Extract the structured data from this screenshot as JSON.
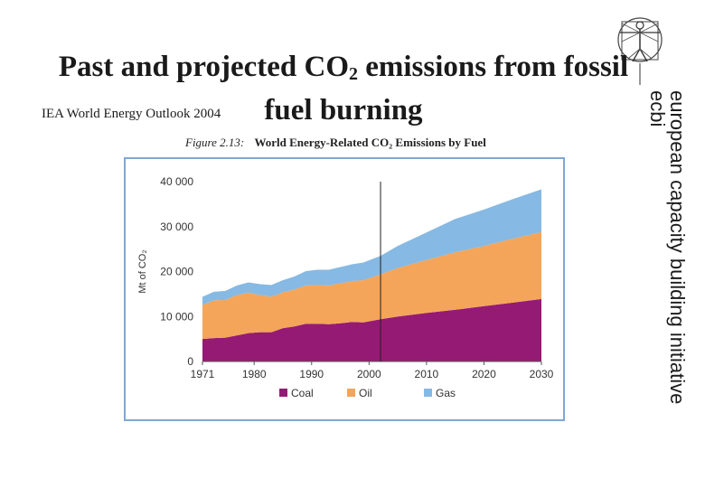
{
  "slide": {
    "title_part1": "Past and projected CO",
    "title_sub": "2",
    "title_part2": " emissions  from fossil fuel burning",
    "source": "IEA World Energy Outlook 2004",
    "side_text_line1": "european capacity building initiative",
    "side_text_line2": "ecbi"
  },
  "figure": {
    "label": "Figure 2.13:",
    "caption": "World Energy-Related CO₂ Emissions by Fuel"
  },
  "chart_data": {
    "type": "area",
    "stacked": true,
    "title": "World Energy-Related CO₂ Emissions by Fuel",
    "ylabel": "Mt of CO₂",
    "xlabel": "",
    "ylim": [
      0,
      40000
    ],
    "xlim": [
      1971,
      2030
    ],
    "yticks": [
      0,
      10000,
      20000,
      30000,
      40000
    ],
    "ytick_labels": [
      "0",
      "10 000",
      "20 000",
      "30 000",
      "40 000"
    ],
    "xticks": [
      1971,
      1980,
      1990,
      2000,
      2010,
      2020,
      2030
    ],
    "xtick_labels": [
      "1971",
      "1980",
      "1990",
      "2000",
      "2010",
      "2020",
      "2030"
    ],
    "divider_year": 2002,
    "x": [
      1971,
      1973,
      1975,
      1977,
      1979,
      1981,
      1983,
      1985,
      1987,
      1989,
      1991,
      1993,
      1995,
      1997,
      1999,
      2002,
      2005,
      2010,
      2015,
      2020,
      2025,
      2030
    ],
    "series": [
      {
        "name": "Coal",
        "color": "#951a74",
        "values": [
          5000,
          5200,
          5300,
          5800,
          6300,
          6500,
          6500,
          7400,
          7800,
          8400,
          8400,
          8300,
          8500,
          8800,
          8700,
          9400,
          10000,
          10800,
          11500,
          12300,
          13100,
          13900
        ]
      },
      {
        "name": "Oil",
        "color": "#f4a55a",
        "values": [
          7600,
          8400,
          8400,
          9000,
          9000,
          8300,
          7900,
          8000,
          8200,
          8500,
          8600,
          8600,
          8900,
          9100,
          9400,
          10000,
          10800,
          11800,
          12800,
          13400,
          14200,
          14900
        ]
      },
      {
        "name": "Gas",
        "color": "#86b9e3",
        "values": [
          1800,
          1900,
          2000,
          2100,
          2300,
          2400,
          2600,
          2700,
          2900,
          3200,
          3400,
          3500,
          3600,
          3700,
          3900,
          4100,
          4900,
          6100,
          7400,
          8100,
          8800,
          9500
        ]
      }
    ],
    "legend": [
      "Coal",
      "Oil",
      "Gas"
    ],
    "legend_position": "bottom"
  }
}
